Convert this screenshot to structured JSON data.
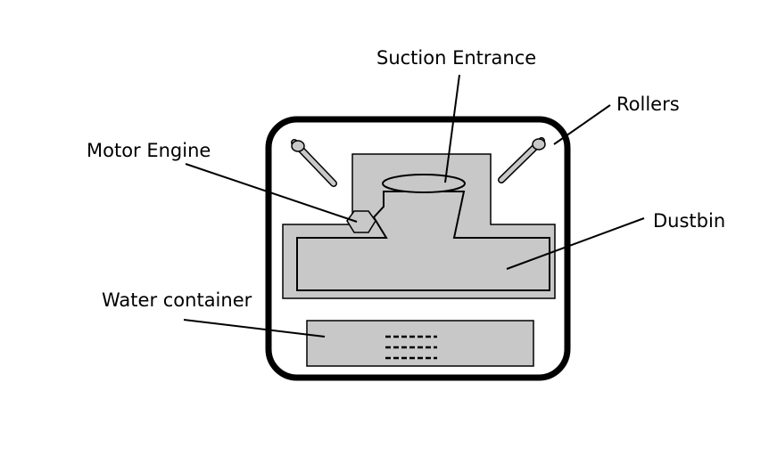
{
  "labels": {
    "suction_entrance": "Suction Entrance",
    "rollers": "Rollers",
    "motor_engine": "Motor Engine",
    "dustbin": "Dustbin",
    "water_container": "Water container"
  },
  "colors": {
    "outline": "#000000",
    "fill": "#c8c8c8",
    "background": "#ffffff"
  }
}
